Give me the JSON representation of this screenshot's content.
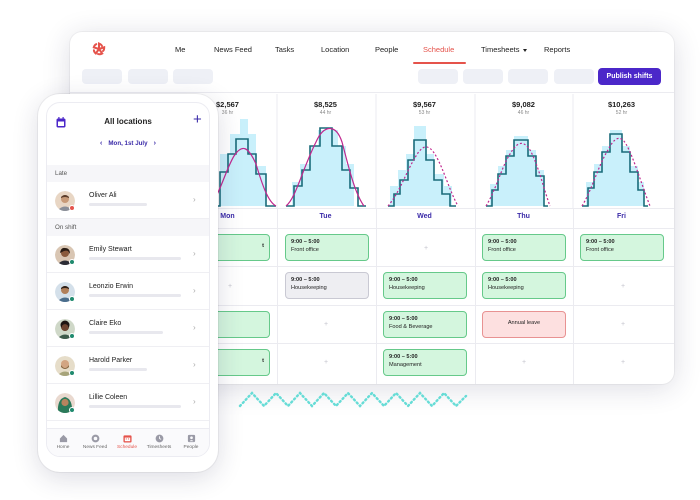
{
  "nav": {
    "items": [
      {
        "label": "Me"
      },
      {
        "label": "News Feed"
      },
      {
        "label": "Tasks"
      },
      {
        "label": "Location"
      },
      {
        "label": "People"
      },
      {
        "label": "Schedule",
        "active": true
      },
      {
        "label": "Timesheets",
        "dropdown": true
      },
      {
        "label": "Reports"
      }
    ]
  },
  "toolbar": {
    "publish_label": "Publish shifts"
  },
  "stats": [
    {
      "value": "$2,567",
      "hours": "36 hr"
    },
    {
      "value": "$8,525",
      "hours": "44 hr"
    },
    {
      "value": "$9,567",
      "hours": "53 hr"
    },
    {
      "value": "$9,082",
      "hours": "46 hr"
    },
    {
      "value": "$10,263",
      "hours": "52 hr"
    }
  ],
  "days": [
    "Mon",
    "Tue",
    "Wed",
    "Thu",
    "Fri"
  ],
  "shifts": {
    "r0": [
      "9:00 – 5:00|Front office",
      "9:00 – 5:00|Front office",
      "",
      "9:00 – 5:00|Front office",
      "9:00 – 5:00|Front office"
    ],
    "r1": [
      "",
      "9:00 – 5:00|Housekeeping",
      "9:00 – 5:00|Housekeeping",
      "9:00 – 5:00|Housekeeping",
      ""
    ],
    "r2": [
      "9:00 – 5:00|Front office",
      "",
      "9:00 – 5:00|Food & Beverage",
      "Annual leave",
      ""
    ],
    "r3": [
      "9:00 – 5:00|Front office",
      "",
      "9:00 – 5:00|Management",
      "",
      ""
    ]
  },
  "shift_text": {
    "tue_r0_time": "9:00 – 5:00",
    "tue_r0_role": "Front office",
    "thu_r0_time": "9:00 – 5:00",
    "thu_r0_role": "Front office",
    "fri_r0_time": "9:00 – 5:00",
    "fri_r0_role": "Front office",
    "tue_r1_time": "9:00 – 5:00",
    "tue_r1_role": "Housekeeping",
    "wed_r1_time": "9:00 – 5:00",
    "wed_r1_role": "Housekeeping",
    "thu_r1_time": "9:00 – 5:00",
    "thu_r1_role": "Housekeeping",
    "wed_r2_time": "9:00 – 5:00",
    "wed_r2_role": "Food & Beverage",
    "thu_r2_leave": "Annual leave",
    "wed_r3_time": "9:00 – 5:00",
    "wed_r3_role": "Management",
    "mon_r0_tail": "t",
    "mon_r3_tail": "t"
  },
  "mobile": {
    "title": "All locations",
    "date": "Mon, 1st July",
    "sections": {
      "late": "Late",
      "on_shift": "On shift"
    },
    "people": [
      {
        "name": "Oliver Ali",
        "status": "late",
        "status_color": "#e5534b"
      },
      {
        "name": "Emily Stewart",
        "status": "on",
        "status_color": "#1f8a6e"
      },
      {
        "name": "Leonzio Erwin",
        "status": "on",
        "status_color": "#1f8a6e"
      },
      {
        "name": "Claire Eko",
        "status": "on",
        "status_color": "#1f8a6e"
      },
      {
        "name": "Harold Parker",
        "status": "on",
        "status_color": "#1f8a6e"
      },
      {
        "name": "Lillie Coleen",
        "status": "on",
        "status_color": "#1f8a6e"
      }
    ],
    "bottom_nav": [
      {
        "label": "Home",
        "icon": "home-icon"
      },
      {
        "label": "News Feed",
        "icon": "news-icon"
      },
      {
        "label": "Schedule",
        "icon": "calendar-icon",
        "active": true
      },
      {
        "label": "Timesheets",
        "icon": "clock-icon"
      },
      {
        "label": "People",
        "icon": "people-icon"
      }
    ]
  },
  "colors": {
    "accent": "#e5534b",
    "brand": "#4b27c9",
    "shift_green": "#d4f6de",
    "leave_red": "#fde0e0",
    "chart_fill": "#c9f0fb",
    "chart_step": "#1a6b7a",
    "chart_forecast": "#c0288f"
  }
}
